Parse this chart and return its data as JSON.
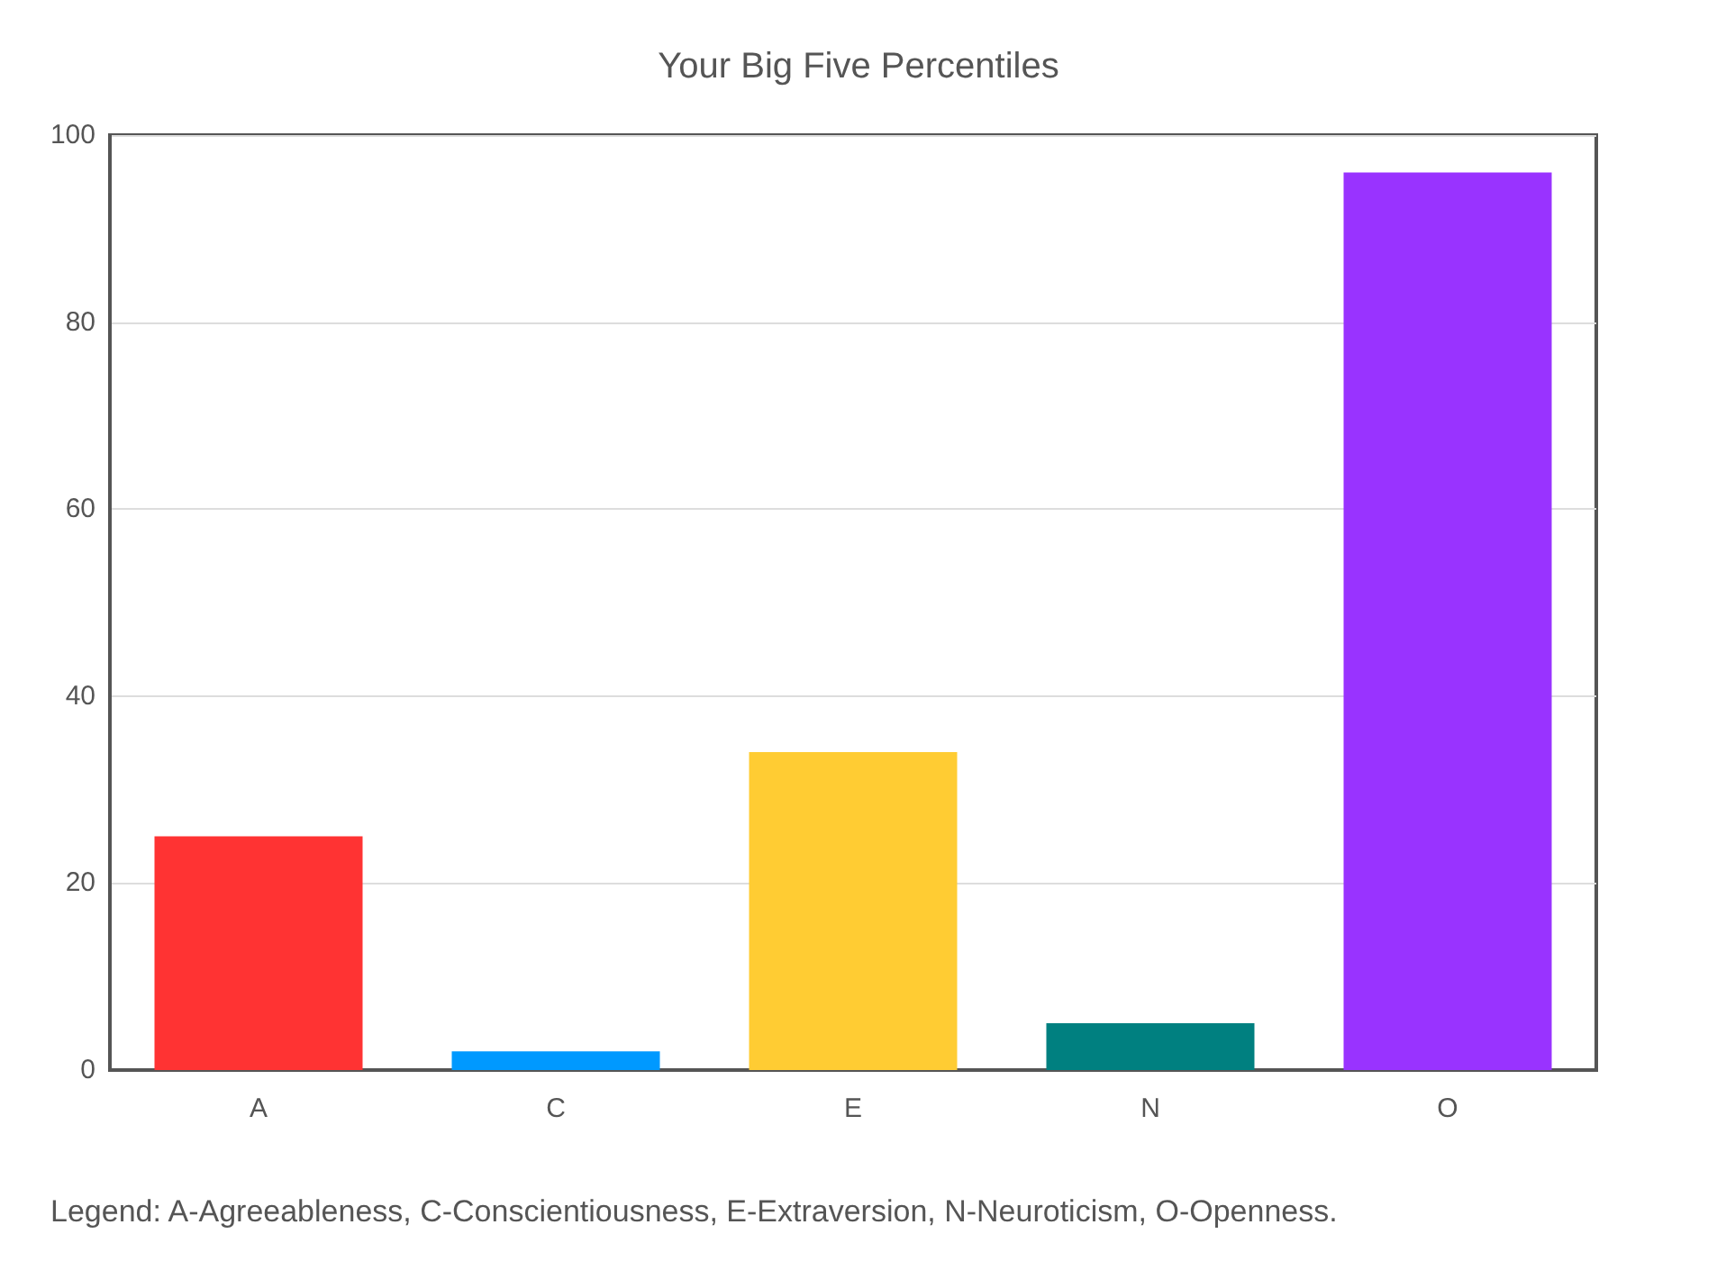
{
  "chart_data": {
    "type": "bar",
    "title": "Your Big Five Percentiles",
    "categories": [
      "A",
      "C",
      "E",
      "N",
      "O"
    ],
    "values": [
      25,
      2,
      34,
      5,
      96
    ],
    "colors": [
      "#ff3333",
      "#0099ff",
      "#ffcc33",
      "#008080",
      "#9933ff"
    ],
    "ylim": [
      0,
      100
    ],
    "yticks": [
      0,
      20,
      40,
      60,
      80,
      100
    ],
    "grid": "y",
    "annotations": [
      "Legend: A-Agreeableness, C-Conscientiousness, E-Extraversion, N-Neuroticism, O-Openness."
    ]
  }
}
